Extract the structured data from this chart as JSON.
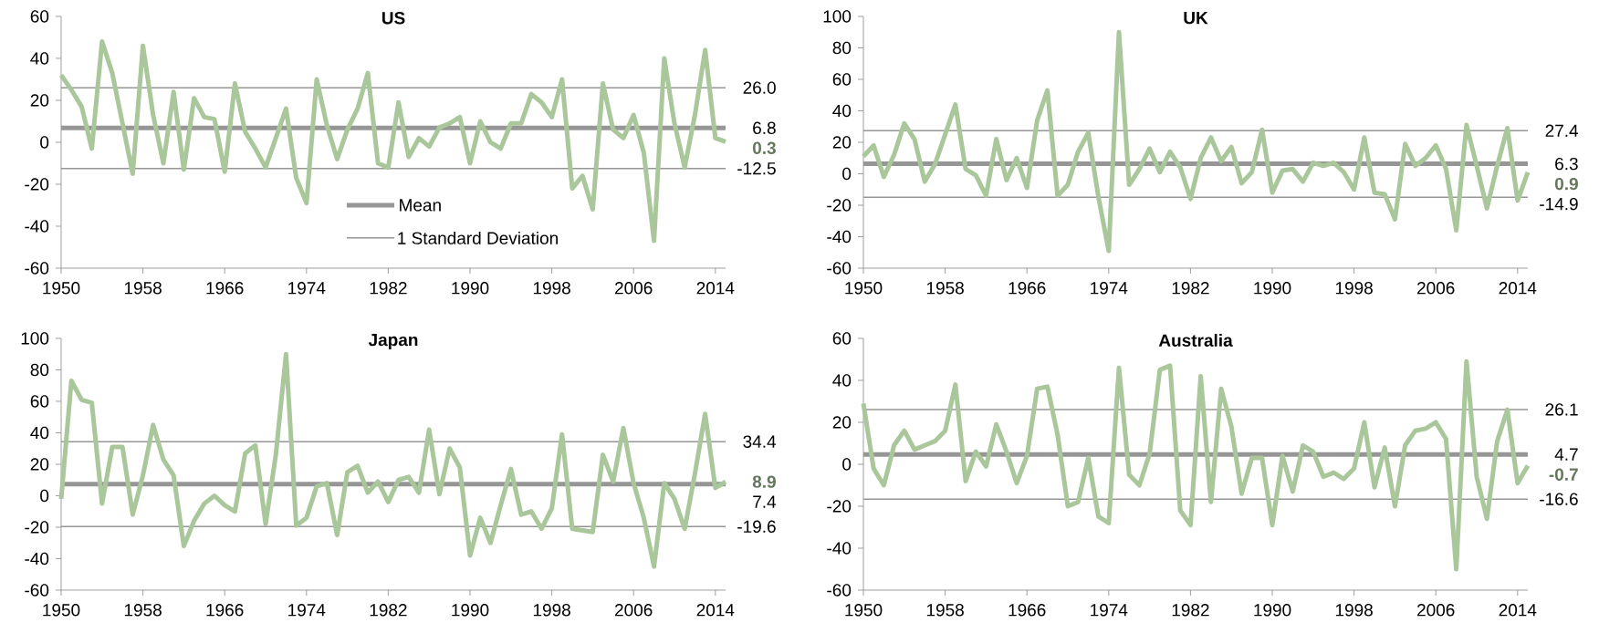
{
  "chart_data": [
    {
      "type": "line",
      "title": "US",
      "x": [
        1950,
        1951,
        1952,
        1953,
        1954,
        1955,
        1956,
        1957,
        1958,
        1959,
        1960,
        1961,
        1962,
        1963,
        1964,
        1965,
        1966,
        1967,
        1968,
        1969,
        1970,
        1971,
        1972,
        1973,
        1974,
        1975,
        1976,
        1977,
        1978,
        1979,
        1980,
        1981,
        1982,
        1983,
        1984,
        1985,
        1986,
        1987,
        1988,
        1989,
        1990,
        1991,
        1992,
        1993,
        1994,
        1995,
        1996,
        1997,
        1998,
        1999,
        2000,
        2001,
        2002,
        2003,
        2004,
        2005,
        2006,
        2007,
        2008,
        2009,
        2010,
        2011,
        2012,
        2013,
        2014,
        2015
      ],
      "series": [
        {
          "color": "#a9c79a",
          "values": [
            32,
            25,
            17,
            -3,
            48,
            33,
            9,
            -15,
            46,
            13,
            -10,
            24,
            -13,
            21,
            12,
            11,
            -14,
            28,
            5,
            -3,
            -12,
            2,
            16,
            -17,
            -29,
            30,
            8,
            -8,
            6,
            16,
            33,
            -10,
            -12,
            19,
            -7,
            2,
            -2,
            7,
            9,
            12,
            -10,
            10,
            0,
            -3,
            9,
            9,
            23,
            19,
            12,
            30,
            -22,
            -16,
            -32,
            28,
            6,
            2,
            13,
            -5,
            -47,
            40,
            9,
            -12,
            13,
            44,
            2,
            0.3
          ],
          "value_labels": [
            null,
            null,
            null,
            null,
            null,
            null,
            null,
            null,
            null,
            null,
            null,
            null,
            null,
            null,
            null,
            null,
            null,
            null,
            null,
            null,
            null,
            null,
            null,
            null,
            null,
            null,
            null,
            null,
            null,
            null,
            null,
            null,
            null,
            null,
            null,
            null,
            null,
            null,
            null,
            null,
            null,
            null,
            null,
            null,
            null,
            null,
            null,
            null,
            null,
            null,
            null,
            null,
            null,
            null,
            null,
            null,
            null,
            null,
            null,
            null,
            null,
            null,
            null,
            null,
            null,
            "0.3"
          ]
        }
      ],
      "xlim": [
        1950,
        2015
      ],
      "xticks": [
        1950,
        1958,
        1966,
        1974,
        1982,
        1990,
        1998,
        2006,
        2014
      ],
      "ylim": [
        -60,
        60
      ],
      "yticks": [
        -60,
        -40,
        -20,
        0,
        20,
        40,
        60
      ],
      "ref_lines": [
        {
          "axis": "y",
          "value": 6.8,
          "label": "6.8",
          "color": "#969696"
        },
        {
          "axis": "y",
          "value": 26.0,
          "label": "26.0",
          "color": "#969696"
        },
        {
          "axis": "y",
          "value": -12.5,
          "label": "-12.5",
          "color": "#969696"
        }
      ],
      "annotations": [
        "Mean",
        "1 Standard Deviation"
      ]
    },
    {
      "type": "line",
      "title": "UK",
      "x": [
        1950,
        1951,
        1952,
        1953,
        1954,
        1955,
        1956,
        1957,
        1958,
        1959,
        1960,
        1961,
        1962,
        1963,
        1964,
        1965,
        1966,
        1967,
        1968,
        1969,
        1970,
        1971,
        1972,
        1973,
        1974,
        1975,
        1976,
        1977,
        1978,
        1979,
        1980,
        1981,
        1982,
        1983,
        1984,
        1985,
        1986,
        1987,
        1988,
        1989,
        1990,
        1991,
        1992,
        1993,
        1994,
        1995,
        1996,
        1997,
        1998,
        1999,
        2000,
        2001,
        2002,
        2003,
        2004,
        2005,
        2006,
        2007,
        2008,
        2009,
        2010,
        2011,
        2012,
        2013,
        2014,
        2015
      ],
      "series": [
        {
          "color": "#a9c79a",
          "values": [
            11,
            18,
            -2,
            12,
            32,
            22,
            -5,
            6,
            25,
            44,
            3,
            -1,
            -14,
            22,
            -4,
            10,
            -9,
            34,
            53,
            -14,
            -7,
            14,
            26,
            -15,
            -49,
            90,
            -7,
            3,
            16,
            1,
            14,
            4,
            -16,
            10,
            23,
            8,
            17,
            -6,
            1,
            28,
            -12,
            2,
            3,
            -5,
            7,
            5,
            7,
            1,
            -10,
            23,
            -12,
            -13,
            -29,
            19,
            5,
            10,
            18,
            3,
            -36,
            31,
            5,
            -22,
            5,
            29,
            -17,
            0.9
          ],
          "value_labels": [
            null,
            null,
            null,
            null,
            null,
            null,
            null,
            null,
            null,
            null,
            null,
            null,
            null,
            null,
            null,
            null,
            null,
            null,
            null,
            null,
            null,
            null,
            null,
            null,
            null,
            null,
            null,
            null,
            null,
            null,
            null,
            null,
            null,
            null,
            null,
            null,
            null,
            null,
            null,
            null,
            null,
            null,
            null,
            null,
            null,
            null,
            null,
            null,
            null,
            null,
            null,
            null,
            null,
            null,
            null,
            null,
            null,
            null,
            null,
            null,
            null,
            null,
            null,
            null,
            null,
            "0.9"
          ]
        }
      ],
      "xlim": [
        1950,
        2015
      ],
      "xticks": [
        1950,
        1958,
        1966,
        1974,
        1982,
        1990,
        1998,
        2006,
        2014
      ],
      "ylim": [
        -60,
        100
      ],
      "yticks": [
        -60,
        -40,
        -20,
        0,
        20,
        40,
        60,
        80,
        100
      ],
      "ref_lines": [
        {
          "axis": "y",
          "value": 6.3,
          "label": "6.3",
          "color": "#969696"
        },
        {
          "axis": "y",
          "value": 27.4,
          "label": "27.4",
          "color": "#969696"
        },
        {
          "axis": "y",
          "value": -14.9,
          "label": "-14.9",
          "color": "#969696"
        }
      ]
    },
    {
      "type": "line",
      "title": "Japan",
      "x": [
        1950,
        1951,
        1952,
        1953,
        1954,
        1955,
        1956,
        1957,
        1958,
        1959,
        1960,
        1961,
        1962,
        1963,
        1964,
        1965,
        1966,
        1967,
        1968,
        1969,
        1970,
        1971,
        1972,
        1973,
        1974,
        1975,
        1976,
        1977,
        1978,
        1979,
        1980,
        1981,
        1982,
        1983,
        1984,
        1985,
        1986,
        1987,
        1988,
        1989,
        1990,
        1991,
        1992,
        1993,
        1994,
        1995,
        1996,
        1997,
        1998,
        1999,
        2000,
        2001,
        2002,
        2003,
        2004,
        2005,
        2006,
        2007,
        2008,
        2009,
        2010,
        2011,
        2012,
        2013,
        2014,
        2015
      ],
      "series": [
        {
          "color": "#a9c79a",
          "values": [
            -2,
            73,
            61,
            59,
            -5,
            31,
            31,
            -12,
            13,
            45,
            23,
            13,
            -32,
            -16,
            -5,
            0,
            -6,
            -10,
            27,
            32,
            -18,
            26,
            90,
            -19,
            -14,
            6,
            8,
            -25,
            15,
            19,
            2,
            9,
            -4,
            10,
            12,
            2,
            42,
            1,
            30,
            18,
            -38,
            -14,
            -30,
            -6,
            17,
            -12,
            -10,
            -21,
            -8,
            39,
            -21,
            -22,
            -23,
            26,
            9,
            43,
            8,
            -14,
            -45,
            8,
            -2,
            -21,
            14,
            52,
            5,
            8.9
          ],
          "value_labels": [
            null,
            null,
            null,
            null,
            null,
            null,
            null,
            null,
            null,
            null,
            null,
            null,
            null,
            null,
            null,
            null,
            null,
            null,
            null,
            null,
            null,
            null,
            null,
            null,
            null,
            null,
            null,
            null,
            null,
            null,
            null,
            null,
            null,
            null,
            null,
            null,
            null,
            null,
            null,
            null,
            null,
            null,
            null,
            null,
            null,
            null,
            null,
            null,
            null,
            null,
            null,
            null,
            null,
            null,
            null,
            null,
            null,
            null,
            null,
            null,
            null,
            null,
            null,
            null,
            null,
            "8.9"
          ]
        }
      ],
      "xlim": [
        1950,
        2015
      ],
      "xticks": [
        1950,
        1958,
        1966,
        1974,
        1982,
        1990,
        1998,
        2006,
        2014
      ],
      "ylim": [
        -60,
        100
      ],
      "yticks": [
        -60,
        -40,
        -20,
        0,
        20,
        40,
        60,
        80,
        100
      ],
      "ref_lines": [
        {
          "axis": "y",
          "value": 7.4,
          "label": "7.4",
          "color": "#969696"
        },
        {
          "axis": "y",
          "value": 34.4,
          "label": "34.4",
          "color": "#969696"
        },
        {
          "axis": "y",
          "value": -19.6,
          "label": "-19.6",
          "color": "#969696"
        }
      ]
    },
    {
      "type": "line",
      "title": "Australia",
      "x": [
        1950,
        1951,
        1952,
        1953,
        1954,
        1955,
        1956,
        1957,
        1958,
        1959,
        1960,
        1961,
        1962,
        1963,
        1964,
        1965,
        1966,
        1967,
        1968,
        1969,
        1970,
        1971,
        1972,
        1973,
        1974,
        1975,
        1976,
        1977,
        1978,
        1979,
        1980,
        1981,
        1982,
        1983,
        1984,
        1985,
        1986,
        1987,
        1988,
        1989,
        1990,
        1991,
        1992,
        1993,
        1994,
        1995,
        1996,
        1997,
        1998,
        1999,
        2000,
        2001,
        2002,
        2003,
        2004,
        2005,
        2006,
        2007,
        2008,
        2009,
        2010,
        2011,
        2012,
        2013,
        2014,
        2015
      ],
      "series": [
        {
          "color": "#a9c79a",
          "values": [
            29,
            -2,
            -10,
            9,
            16,
            7,
            9,
            11,
            16,
            38,
            -8,
            6,
            -1,
            19,
            6,
            -9,
            4,
            36,
            37,
            14,
            -20,
            -18,
            3,
            -25,
            -28,
            46,
            -5,
            -10,
            5,
            45,
            47,
            -22,
            -29,
            42,
            -18,
            36,
            18,
            -14,
            3,
            3,
            -29,
            4,
            -13,
            9,
            6,
            -6,
            -4,
            -7,
            -2,
            20,
            -11,
            8,
            -20,
            9,
            16,
            17,
            20,
            12,
            -50,
            49,
            -6,
            -26,
            11,
            26,
            -9,
            -0.7
          ],
          "value_labels": [
            null,
            null,
            null,
            null,
            null,
            null,
            null,
            null,
            null,
            null,
            null,
            null,
            null,
            null,
            null,
            null,
            null,
            null,
            null,
            null,
            null,
            null,
            null,
            null,
            null,
            null,
            null,
            null,
            null,
            null,
            null,
            null,
            null,
            null,
            null,
            null,
            null,
            null,
            null,
            null,
            null,
            null,
            null,
            null,
            null,
            null,
            null,
            null,
            null,
            null,
            null,
            null,
            null,
            null,
            null,
            null,
            null,
            null,
            null,
            null,
            null,
            null,
            null,
            null,
            null,
            "-0.7"
          ]
        }
      ],
      "xlim": [
        1950,
        2015
      ],
      "xticks": [
        1950,
        1958,
        1966,
        1974,
        1982,
        1990,
        1998,
        2006,
        2014
      ],
      "ylim": [
        -60,
        60
      ],
      "yticks": [
        -60,
        -40,
        -20,
        0,
        20,
        40,
        60
      ],
      "ref_lines": [
        {
          "axis": "y",
          "value": 4.7,
          "label": "4.7",
          "color": "#969696"
        },
        {
          "axis": "y",
          "value": 26.1,
          "label": "26.1",
          "color": "#969696"
        },
        {
          "axis": "y",
          "value": -16.6,
          "label": "-16.6",
          "color": "#969696"
        }
      ]
    }
  ]
}
